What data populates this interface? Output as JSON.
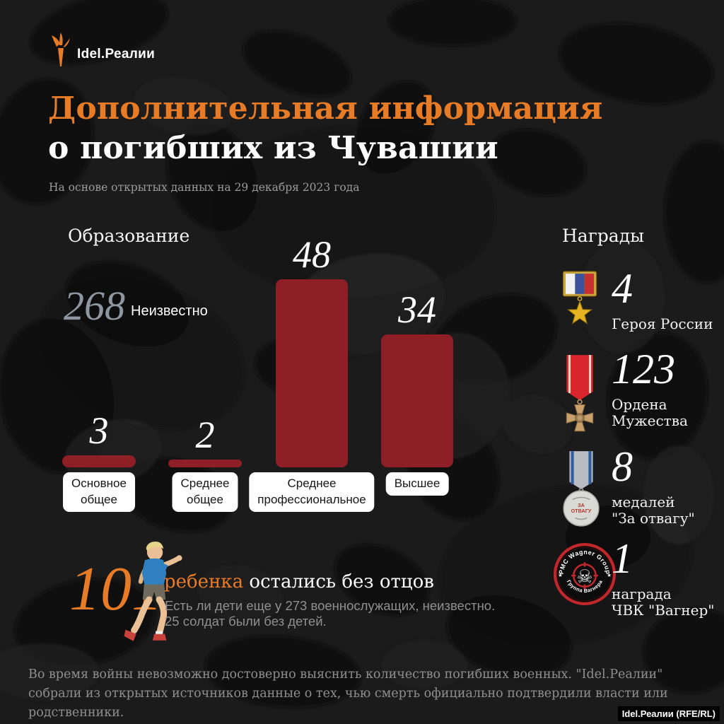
{
  "page": {
    "logo_text": "Idel.Реалии",
    "title_line1": "Дополнительная информация",
    "title_line2": "о погибших из Чувашии",
    "subtitle": "На основе открытых данных на 29 декабря 2023 года",
    "footer": "Во время войны невозможно достоверно выяснить количество погибших военных. \"Idel.Реалии\" собрали из открытых источников данные о тех, чью смерть официально подтвердили власти или родственники.",
    "credit": "Idel.Реалии (RFE/RL)"
  },
  "education": {
    "heading": "Образование",
    "unknown_value": "268",
    "unknown_label": "Неизвестно",
    "bars": [
      {
        "label_line1": "Основное",
        "label_line2": "общее"
      },
      {
        "label_line1": "Среднее",
        "label_line2": "общее"
      },
      {
        "label_line1": "Среднее",
        "label_line2": "профессиональное"
      },
      {
        "label_line1": "Высшее",
        "label_line2": ""
      }
    ]
  },
  "chart_data": {
    "type": "bar",
    "title": "Образование",
    "categories": [
      "Основное общее",
      "Среднее общее",
      "Среднее профессиональное",
      "Высшее"
    ],
    "values": [
      3,
      2,
      48,
      34
    ],
    "annotation": {
      "value": 268,
      "label": "Неизвестно"
    },
    "bar_color": "#8e1f27",
    "value_labels": true,
    "ylim": [
      0,
      48
    ],
    "grid": false,
    "legend": false
  },
  "awards": {
    "heading": "Награды",
    "items": [
      {
        "icon": "hero-of-russia-medal",
        "value": "4",
        "label_line1": "Героя России",
        "label_line2": ""
      },
      {
        "icon": "order-of-courage-medal",
        "value": "123",
        "label_line1": "Ордена",
        "label_line2": "Мужества"
      },
      {
        "icon": "za-otvagu-medal",
        "value": "8",
        "label_line1": "медалей",
        "label_line2": "\"За отвагу\"",
        "medal_text_line1": "ЗА",
        "medal_text_line2": "ОТВАГУ"
      },
      {
        "icon": "wagner-group-patch",
        "value": "1",
        "label_line1": "награда",
        "label_line2": "ЧВК \"Вагнер\"",
        "patch_text_top": "PMC Wagner Group",
        "patch_text_bottom": "Группа Вагнера"
      }
    ]
  },
  "children": {
    "value": "101",
    "highlight": "ребенка",
    "text": "остались без отцов",
    "note_line1": "Есть ли дети еще у 273 военнослужащих, неизвестно.",
    "note_line2": "25 солдат были без детей."
  },
  "colors": {
    "accent_orange": "#e87b25",
    "bar_red": "#8e1f27",
    "unknown_grey": "#8d96a1",
    "background": "#1a1a1a"
  }
}
